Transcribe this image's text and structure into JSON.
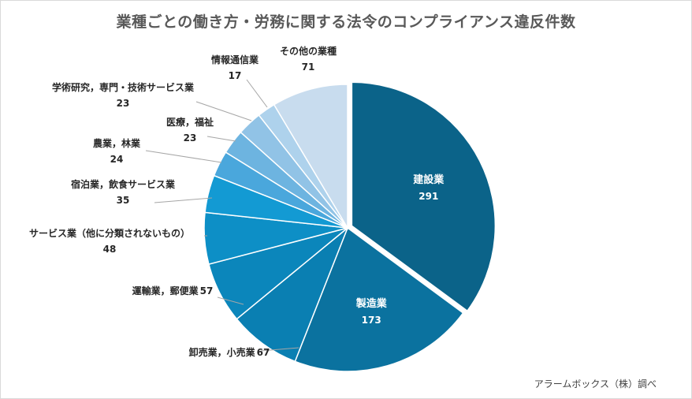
{
  "chart_data": {
    "type": "pie",
    "title": "業種ごとの働き方・労務に関する法令のコンプライアンス違反件数",
    "slices": [
      {
        "label": "建設業",
        "value": 291,
        "color": "#0b6389",
        "label_inside": true,
        "exploded": true
      },
      {
        "label": "製造業",
        "value": 173,
        "color": "#0b729f",
        "label_inside": true,
        "exploded": false
      },
      {
        "label": "卸売業，小売業",
        "value": 67,
        "color": "#0a7fb2",
        "label_inside": false,
        "exploded": false
      },
      {
        "label": "運輸業，郵便業",
        "value": 57,
        "color": "#0b86bb",
        "label_inside": false,
        "exploded": false
      },
      {
        "label": "サービス業（他に分類されないもの）",
        "value": 48,
        "color": "#0d8fc6",
        "label_inside": false,
        "exploded": false
      },
      {
        "label": "宿泊業，飲食サービス業",
        "value": 35,
        "color": "#139ad3",
        "label_inside": false,
        "exploded": false
      },
      {
        "label": "農業，林業",
        "value": 24,
        "color": "#4aa7dc",
        "label_inside": false,
        "exploded": false
      },
      {
        "label": "医療，福祉",
        "value": 23,
        "color": "#6db4e0",
        "label_inside": false,
        "exploded": false
      },
      {
        "label": "学術研究，専門・技術サービス業",
        "value": 23,
        "color": "#91c3e6",
        "label_inside": false,
        "exploded": false
      },
      {
        "label": "情報通信業",
        "value": 17,
        "color": "#aed2ec",
        "label_inside": false,
        "exploded": false
      },
      {
        "label": "その他の業種",
        "value": 71,
        "color": "#c8dcee",
        "label_inside": false,
        "exploded": false
      }
    ],
    "start_angle_deg": 0,
    "direction": "clockwise",
    "legend": "none"
  },
  "source_note": "アラームボックス（株）調べ"
}
